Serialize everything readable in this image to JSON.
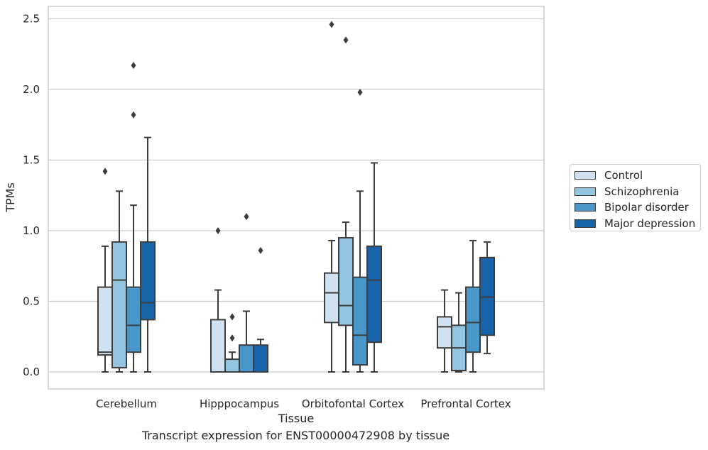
{
  "caption": "Transcript expression for ENST00000472908 by tissue",
  "chart_data": {
    "type": "box",
    "xlabel": "Tissue",
    "ylabel": "TPMs",
    "ylim": [
      -0.12,
      2.6
    ],
    "yticks": [
      "0.0",
      "0.5",
      "1.0",
      "1.5",
      "2.0",
      "2.5"
    ],
    "categories": [
      "Cerebellum",
      "Hipppocampus",
      "Orbitofontal Cortex",
      "Prefrontal Cortex"
    ],
    "grid": true,
    "legend_position": "right",
    "series": [
      {
        "name": "Control",
        "color": "#d0e1f2",
        "boxes": [
          {
            "whisker_low": 0.0,
            "q1": 0.12,
            "median": 0.14,
            "q3": 0.6,
            "whisker_high": 0.89,
            "outliers": [
              1.42
            ]
          },
          {
            "whisker_low": 0.0,
            "q1": 0.0,
            "median": 0.0,
            "q3": 0.37,
            "whisker_high": 0.58,
            "outliers": [
              1.0
            ]
          },
          {
            "whisker_low": 0.0,
            "q1": 0.35,
            "median": 0.56,
            "q3": 0.7,
            "whisker_high": 0.93,
            "outliers": [
              2.46
            ]
          },
          {
            "whisker_low": 0.0,
            "q1": 0.17,
            "median": 0.32,
            "q3": 0.39,
            "whisker_high": 0.58,
            "outliers": []
          }
        ]
      },
      {
        "name": "Schizophrenia",
        "color": "#94c4df",
        "boxes": [
          {
            "whisker_low": 0.0,
            "q1": 0.03,
            "median": 0.65,
            "q3": 0.92,
            "whisker_high": 1.28,
            "outliers": []
          },
          {
            "whisker_low": 0.0,
            "q1": 0.0,
            "median": 0.0,
            "q3": 0.09,
            "whisker_high": 0.14,
            "outliers": [
              0.24,
              0.39
            ]
          },
          {
            "whisker_low": 0.0,
            "q1": 0.33,
            "median": 0.47,
            "q3": 0.95,
            "whisker_high": 1.06,
            "outliers": [
              2.35
            ]
          },
          {
            "whisker_low": 0.0,
            "q1": 0.01,
            "median": 0.17,
            "q3": 0.33,
            "whisker_high": 0.56,
            "outliers": []
          }
        ]
      },
      {
        "name": "Bipolar disorder",
        "color": "#4a98c9",
        "boxes": [
          {
            "whisker_low": 0.0,
            "q1": 0.14,
            "median": 0.33,
            "q3": 0.6,
            "whisker_high": 1.18,
            "outliers": [
              1.82,
              2.17
            ]
          },
          {
            "whisker_low": 0.0,
            "q1": 0.0,
            "median": 0.0,
            "q3": 0.19,
            "whisker_high": 0.43,
            "outliers": [
              1.1
            ]
          },
          {
            "whisker_low": 0.0,
            "q1": 0.05,
            "median": 0.26,
            "q3": 0.67,
            "whisker_high": 1.28,
            "outliers": [
              1.98
            ]
          },
          {
            "whisker_low": 0.0,
            "q1": 0.14,
            "median": 0.35,
            "q3": 0.6,
            "whisker_high": 0.93,
            "outliers": []
          }
        ]
      },
      {
        "name": "Major depression",
        "color": "#1764ab",
        "boxes": [
          {
            "whisker_low": 0.0,
            "q1": 0.37,
            "median": 0.49,
            "q3": 0.92,
            "whisker_high": 1.66,
            "outliers": []
          },
          {
            "whisker_low": 0.0,
            "q1": 0.0,
            "median": 0.0,
            "q3": 0.19,
            "whisker_high": 0.23,
            "outliers": [
              0.86
            ]
          },
          {
            "whisker_low": 0.0,
            "q1": 0.21,
            "median": 0.65,
            "q3": 0.89,
            "whisker_high": 1.48,
            "outliers": []
          },
          {
            "whisker_low": 0.13,
            "q1": 0.26,
            "median": 0.53,
            "q3": 0.81,
            "whisker_high": 0.92,
            "outliers": []
          }
        ]
      }
    ]
  }
}
